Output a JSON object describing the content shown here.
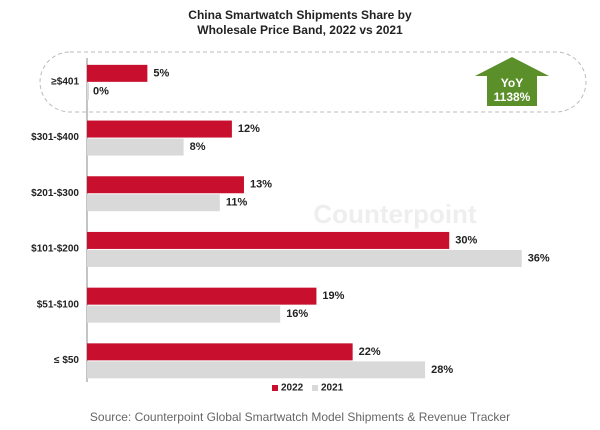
{
  "chart_data": {
    "type": "hbar",
    "title": [
      "China Smartwatch Shipments Share by",
      "Wholesale Price Band, 2022 vs 2021"
    ],
    "categories": [
      "≥$401",
      "$301-$400",
      "$201-$300",
      "$101-$200",
      "$51-$100",
      "≤ $50"
    ],
    "series": [
      {
        "name": "2022",
        "color": "#c8102e",
        "values": [
          5,
          12,
          13,
          30,
          19,
          22
        ],
        "value_labels": [
          "5%",
          "12%",
          "13%",
          "30%",
          "19%",
          "22%"
        ]
      },
      {
        "name": "2021",
        "color": "#d9d9d9",
        "values": [
          0,
          8,
          11,
          36,
          16,
          28
        ],
        "value_labels": [
          "0%",
          "8%",
          "11%",
          "36%",
          "16%",
          "28%"
        ]
      }
    ],
    "xlim": [
      0,
      40
    ],
    "legend": "bottom",
    "annotation": [
      "YoY",
      "1138%"
    ],
    "watermark": "Counterpoint",
    "source": "Source: Counterpoint Global Smartwatch Model Shipments & Revenue Tracker"
  }
}
